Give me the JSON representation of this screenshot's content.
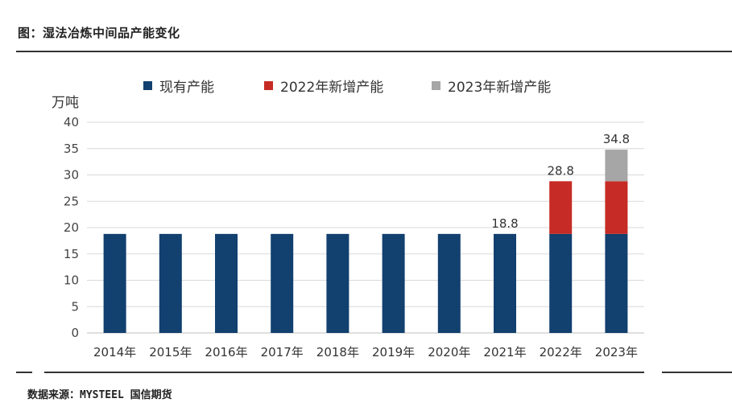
{
  "figure": {
    "title": "图：湿法冶炼中间品产能变化",
    "source": "数据来源：MYSTEEL  国信期货"
  },
  "colors": {
    "existing": "#12406f",
    "add2022": "#c62b25",
    "add2023": "#a6a6a6",
    "grid": "#d9d9d9",
    "axis": "#bfbfbf"
  },
  "chart_data": {
    "type": "bar",
    "stacked": true,
    "title": "",
    "ylabel": "万吨",
    "xlabel": "",
    "ylim": [
      0,
      40
    ],
    "yticks": [
      0,
      5,
      10,
      15,
      20,
      25,
      30,
      35,
      40
    ],
    "grid": true,
    "legend_position": "top",
    "categories": [
      "2014年",
      "2015年",
      "2016年",
      "2017年",
      "2018年",
      "2019年",
      "2020年",
      "2021年",
      "2022年",
      "2023年"
    ],
    "series": [
      {
        "name": "现有产能",
        "values": [
          18.8,
          18.8,
          18.8,
          18.8,
          18.8,
          18.8,
          18.8,
          18.8,
          18.8,
          18.8
        ]
      },
      {
        "name": "2022年新增产能",
        "values": [
          0,
          0,
          0,
          0,
          0,
          0,
          0,
          0,
          10,
          10
        ]
      },
      {
        "name": "2023年新增产能",
        "values": [
          0,
          0,
          0,
          0,
          0,
          0,
          0,
          0,
          0,
          6
        ]
      }
    ],
    "data_labels": [
      {
        "category": "2021年",
        "text": "18.8",
        "value": 18.8
      },
      {
        "category": "2022年",
        "text": "28.8",
        "value": 28.8
      },
      {
        "category": "2023年",
        "text": "34.8",
        "value": 34.8
      }
    ]
  }
}
